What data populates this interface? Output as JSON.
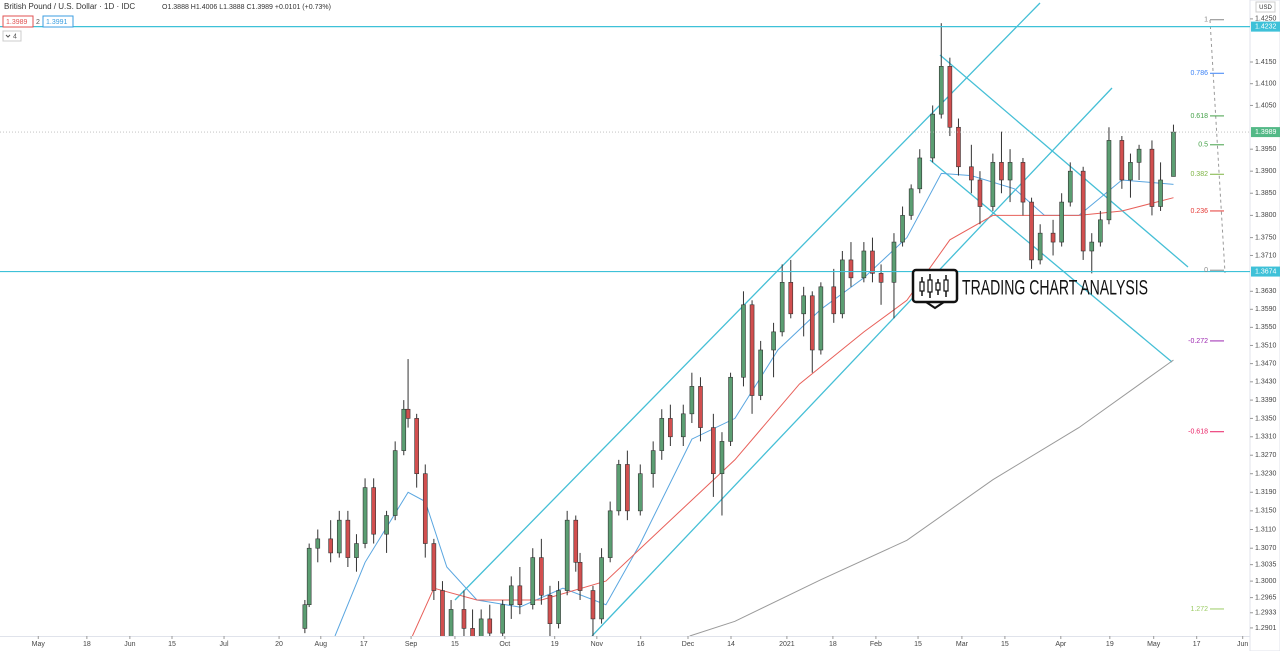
{
  "chart_data": {
    "type": "candlestick",
    "title": "British Pound / U.S. Dollar · 1D · IDC",
    "ohlc_text": "O1.3888 H1.4006 L1.3888 C1.3989 +0.0101 (+0.73%)",
    "header_boxes": [
      "1.3989",
      "2",
      "1.3991"
    ],
    "indicator_count": "4",
    "currency": "USD",
    "logo_text": "TRADING CHART ANALYSIS",
    "log_scale": true,
    "grid": false,
    "up_color": "#5b9e72",
    "down_color": "#d24f4f",
    "ylim": [
      1.2884,
      1.4294
    ],
    "xlim": [
      -70.9,
      219.8
    ],
    "yticks": [
      {
        "value": 1.425,
        "label": "1.4250"
      },
      {
        "value": 1.415,
        "label": "1.4150"
      },
      {
        "value": 1.41,
        "label": "1.4100"
      },
      {
        "value": 1.405,
        "label": "1.4050"
      },
      {
        "value": 1.395,
        "label": "1.3950"
      },
      {
        "value": 1.39,
        "label": "1.3900"
      },
      {
        "value": 1.385,
        "label": "1.3850"
      },
      {
        "value": 1.38,
        "label": "1.3800"
      },
      {
        "value": 1.375,
        "label": "1.3750"
      },
      {
        "value": 1.371,
        "label": "1.3710"
      },
      {
        "value": 1.363,
        "label": "1.3630"
      },
      {
        "value": 1.359,
        "label": "1.3590"
      },
      {
        "value": 1.355,
        "label": "1.3550"
      },
      {
        "value": 1.351,
        "label": "1.3510"
      },
      {
        "value": 1.347,
        "label": "1.3470"
      },
      {
        "value": 1.343,
        "label": "1.3430"
      },
      {
        "value": 1.339,
        "label": "1.3390"
      },
      {
        "value": 1.335,
        "label": "1.3350"
      },
      {
        "value": 1.331,
        "label": "1.3310"
      },
      {
        "value": 1.327,
        "label": "1.3270"
      },
      {
        "value": 1.323,
        "label": "1.3230"
      },
      {
        "value": 1.319,
        "label": "1.3190"
      },
      {
        "value": 1.315,
        "label": "1.3150"
      },
      {
        "value": 1.311,
        "label": "1.3110"
      },
      {
        "value": 1.307,
        "label": "1.3070"
      },
      {
        "value": 1.3035,
        "label": "1.3035"
      },
      {
        "value": 1.3,
        "label": "1.3000"
      },
      {
        "value": 1.2965,
        "label": "1.2965"
      },
      {
        "value": 1.2933,
        "label": "1.2933"
      },
      {
        "value": 1.2901,
        "label": "1.2901"
      }
    ],
    "xticks": [
      {
        "value": -62,
        "label": "May"
      },
      {
        "value": -50.7,
        "label": "18"
      },
      {
        "value": -40.7,
        "label": "Jun"
      },
      {
        "value": -30.9,
        "label": "15"
      },
      {
        "value": -18.8,
        "label": "Jul"
      },
      {
        "value": -6,
        "label": "20"
      },
      {
        "value": 3.7,
        "label": "Aug"
      },
      {
        "value": 13.7,
        "label": "17"
      },
      {
        "value": 24.7,
        "label": "Sep"
      },
      {
        "value": 34.9,
        "label": "15"
      },
      {
        "value": 46.5,
        "label": "Oct"
      },
      {
        "value": 58.1,
        "label": "19"
      },
      {
        "value": 67.9,
        "label": "Nov"
      },
      {
        "value": 78.1,
        "label": "16"
      },
      {
        "value": 89.1,
        "label": "Dec"
      },
      {
        "value": 99.1,
        "label": "14"
      },
      {
        "value": 112.1,
        "label": "2021"
      },
      {
        "value": 122.8,
        "label": "18"
      },
      {
        "value": 132.8,
        "label": "Feb"
      },
      {
        "value": 142.6,
        "label": "15"
      },
      {
        "value": 152.8,
        "label": "Mar"
      },
      {
        "value": 162.8,
        "label": "15"
      },
      {
        "value": 175.8,
        "label": "Apr"
      },
      {
        "value": 187.2,
        "label": "19"
      },
      {
        "value": 197.4,
        "label": "May"
      },
      {
        "value": 207.4,
        "label": "17"
      },
      {
        "value": 218.1,
        "label": "Jun"
      }
    ],
    "x": [
      0,
      1,
      3,
      6,
      8,
      10,
      12,
      14,
      16,
      19,
      21,
      23,
      24,
      26,
      28,
      30,
      32,
      34,
      37,
      39,
      41,
      43,
      46,
      48,
      50,
      53,
      55,
      57,
      59,
      61,
      63,
      64,
      67,
      69,
      71,
      73,
      75,
      78,
      81,
      83,
      85,
      88,
      90,
      92,
      95,
      97,
      99,
      102,
      104,
      106,
      109,
      111,
      113,
      116,
      118,
      120,
      123,
      125,
      127,
      130,
      132,
      134,
      137,
      139,
      141,
      143,
      146,
      148,
      150,
      152,
      155,
      157,
      160,
      162,
      164,
      167,
      169,
      171,
      174,
      176,
      178,
      181,
      183,
      185,
      187,
      190,
      192,
      194,
      197,
      199,
      202
    ],
    "open": [
      1.29,
      1.295,
      1.307,
      1.309,
      1.306,
      1.313,
      1.305,
      1.308,
      1.32,
      1.31,
      1.314,
      1.328,
      1.337,
      1.335,
      1.323,
      1.308,
      1.298,
      1.288,
      1.294,
      1.29,
      1.288,
      1.292,
      1.289,
      1.295,
      1.299,
      1.295,
      1.305,
      1.297,
      1.291,
      1.298,
      1.313,
      1.304,
      1.298,
      1.292,
      1.305,
      1.315,
      1.325,
      1.315,
      1.323,
      1.328,
      1.335,
      1.331,
      1.336,
      1.342,
      1.333,
      1.323,
      1.33,
      1.344,
      1.36,
      1.34,
      1.35,
      1.354,
      1.365,
      1.358,
      1.362,
      1.35,
      1.364,
      1.358,
      1.37,
      1.366,
      1.372,
      1.367,
      1.365,
      1.374,
      1.38,
      1.386,
      1.393,
      1.403,
      1.414,
      1.4,
      1.391,
      1.388,
      1.382,
      1.392,
      1.388,
      1.392,
      1.383,
      1.37,
      1.376,
      1.374,
      1.383,
      1.39,
      1.372,
      1.374,
      1.379,
      1.397,
      1.388,
      1.392,
      1.395,
      1.382,
      1.3888
    ],
    "high": [
      1.296,
      1.308,
      1.311,
      1.313,
      1.315,
      1.315,
      1.31,
      1.322,
      1.322,
      1.315,
      1.33,
      1.339,
      1.348,
      1.336,
      1.325,
      1.309,
      1.3,
      1.296,
      1.298,
      1.294,
      1.294,
      1.295,
      1.296,
      1.301,
      1.303,
      1.307,
      1.309,
      1.299,
      1.3,
      1.315,
      1.314,
      1.306,
      1.299,
      1.307,
      1.317,
      1.326,
      1.328,
      1.325,
      1.33,
      1.337,
      1.338,
      1.338,
      1.345,
      1.344,
      1.336,
      1.332,
      1.345,
      1.363,
      1.361,
      1.352,
      1.356,
      1.369,
      1.37,
      1.364,
      1.363,
      1.365,
      1.368,
      1.372,
      1.374,
      1.374,
      1.375,
      1.369,
      1.376,
      1.382,
      1.387,
      1.395,
      1.405,
      1.424,
      1.416,
      1.402,
      1.396,
      1.39,
      1.394,
      1.399,
      1.395,
      1.393,
      1.384,
      1.378,
      1.379,
      1.385,
      1.392,
      1.391,
      1.376,
      1.381,
      1.4,
      1.398,
      1.394,
      1.396,
      1.397,
      1.392,
      1.4006
    ],
    "low": [
      1.289,
      1.2945,
      1.304,
      1.304,
      1.305,
      1.303,
      1.302,
      1.307,
      1.308,
      1.306,
      1.313,
      1.327,
      1.333,
      1.32,
      1.305,
      1.296,
      1.286,
      1.286,
      1.288,
      1.285,
      1.286,
      1.287,
      1.288,
      1.292,
      1.293,
      1.294,
      1.295,
      1.288,
      1.29,
      1.297,
      1.302,
      1.296,
      1.288,
      1.291,
      1.304,
      1.314,
      1.313,
      1.314,
      1.32,
      1.326,
      1.329,
      1.329,
      1.334,
      1.33,
      1.318,
      1.314,
      1.329,
      1.342,
      1.336,
      1.339,
      1.344,
      1.353,
      1.357,
      1.353,
      1.345,
      1.349,
      1.356,
      1.357,
      1.364,
      1.365,
      1.365,
      1.36,
      1.357,
      1.373,
      1.379,
      1.385,
      1.392,
      1.402,
      1.398,
      1.389,
      1.385,
      1.378,
      1.381,
      1.385,
      1.383,
      1.38,
      1.368,
      1.369,
      1.371,
      1.373,
      1.382,
      1.37,
      1.367,
      1.373,
      1.378,
      1.386,
      1.384,
      1.388,
      1.38,
      1.381,
      1.3888
    ],
    "close": [
      1.295,
      1.307,
      1.309,
      1.306,
      1.313,
      1.305,
      1.308,
      1.32,
      1.31,
      1.314,
      1.328,
      1.337,
      1.335,
      1.323,
      1.308,
      1.298,
      1.288,
      1.294,
      1.29,
      1.288,
      1.292,
      1.289,
      1.295,
      1.299,
      1.295,
      1.305,
      1.297,
      1.291,
      1.298,
      1.313,
      1.304,
      1.298,
      1.292,
      1.305,
      1.315,
      1.325,
      1.315,
      1.323,
      1.328,
      1.335,
      1.331,
      1.336,
      1.342,
      1.333,
      1.323,
      1.33,
      1.344,
      1.36,
      1.34,
      1.35,
      1.354,
      1.365,
      1.358,
      1.362,
      1.35,
      1.364,
      1.358,
      1.37,
      1.366,
      1.372,
      1.367,
      1.365,
      1.374,
      1.38,
      1.386,
      1.393,
      1.403,
      1.414,
      1.4,
      1.391,
      1.388,
      1.382,
      1.392,
      1.388,
      1.392,
      1.383,
      1.37,
      1.376,
      1.374,
      1.383,
      1.39,
      1.372,
      1.374,
      1.379,
      1.397,
      1.388,
      1.392,
      1.395,
      1.382,
      1.388,
      1.3989
    ],
    "series": [
      {
        "color": "#5aa6e0",
        "x": [
          7,
          14,
          24,
          28,
          33,
          40,
          50,
          60,
          70,
          78,
          90,
          100,
          110,
          120,
          130,
          140,
          148,
          155,
          165,
          172,
          180,
          190,
          202
        ],
        "values": [
          1.2884,
          1.304,
          1.319,
          1.317,
          1.303,
          1.296,
          1.2945,
          1.2985,
          1.295,
          1.308,
          1.3305,
          1.335,
          1.35,
          1.359,
          1.366,
          1.375,
          1.3895,
          1.389,
          1.386,
          1.38,
          1.38,
          1.388,
          1.387
        ]
      },
      {
        "color": "#e8605a",
        "x": [
          25,
          30,
          40,
          55,
          70,
          85,
          100,
          115,
          130,
          140,
          150,
          160,
          170,
          180,
          190,
          202
        ],
        "values": [
          1.2884,
          1.2985,
          1.296,
          1.296,
          1.3,
          1.313,
          1.326,
          1.3425,
          1.354,
          1.361,
          1.3745,
          1.38,
          1.38,
          1.38,
          1.381,
          1.384
        ]
      },
      {
        "color": "#9a9a9a",
        "x": [
          89.5,
          100,
          120,
          140,
          160,
          180,
          202
        ],
        "values": [
          1.2884,
          1.2915,
          1.3003,
          1.3087,
          1.3217,
          1.333,
          1.3478
        ]
      }
    ],
    "fib_levels": [
      {
        "label": "1",
        "price": 1.4248,
        "color": "#888888"
      },
      {
        "label": "0.786",
        "price": 1.4124,
        "color": "#3b82f6"
      },
      {
        "label": "0.618",
        "price": 1.4026,
        "color": "#43a047"
      },
      {
        "label": "0.5",
        "price": 1.396,
        "color": "#43a047"
      },
      {
        "label": "0.382",
        "price": 1.3893,
        "color": "#7cb342"
      },
      {
        "label": "0.236",
        "price": 1.381,
        "color": "#e53935"
      },
      {
        "label": "0",
        "price": 1.3677,
        "color": "#888888"
      },
      {
        "label": "-0.272",
        "price": 1.352,
        "color": "#9c27b0"
      },
      {
        "label": "-0.618",
        "price": 1.3321,
        "color": "#e91e63"
      },
      {
        "label": "1.272",
        "price": 1.2941,
        "color": "#9ccc65"
      }
    ],
    "price_lines": [
      {
        "value": 1.4232,
        "color": "#3ec1d8",
        "style": "solid"
      },
      {
        "value": 1.3989,
        "color": "#53b987",
        "style": "dotted"
      },
      {
        "value": 1.3674,
        "color": "#3ec1d8",
        "style": "solid"
      }
    ]
  }
}
